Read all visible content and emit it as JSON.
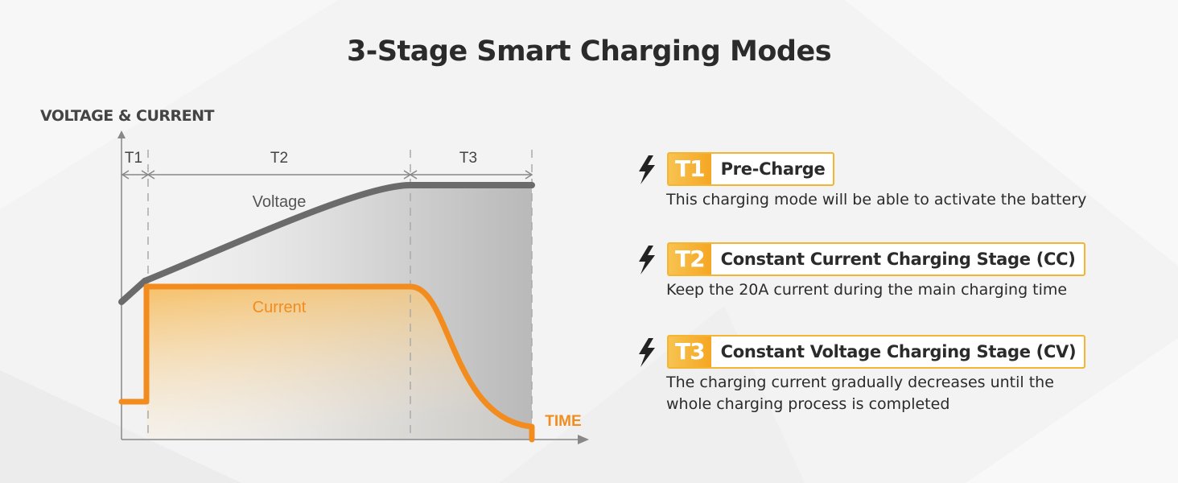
{
  "title": "3-Stage Smart Charging Modes",
  "diagram": {
    "y_axis_label": "VOLTAGE & CURRENT",
    "x_axis_label": "TIME",
    "stage_labels": [
      "T1",
      "T2",
      "T3"
    ],
    "voltage_label": "Voltage",
    "current_label": "Current",
    "colors": {
      "voltage": "#6b6b6b",
      "current": "#f28c1e",
      "accent": "#f5a623"
    }
  },
  "stages": [
    {
      "id": "T1",
      "title": "Pre-Charge",
      "description": [
        "This charging mode will be able to activate the battery"
      ]
    },
    {
      "id": "T2",
      "title": "Constant Current Charging Stage (CC)",
      "description": [
        "Keep the 20A current during the main charging time"
      ]
    },
    {
      "id": "T3",
      "title": "Constant Voltage Charging Stage (CV)",
      "description": [
        "The charging current gradually decreases until the",
        "whole charging process is completed"
      ]
    }
  ],
  "icons": {
    "stage": "lightning-bolt-icon"
  }
}
